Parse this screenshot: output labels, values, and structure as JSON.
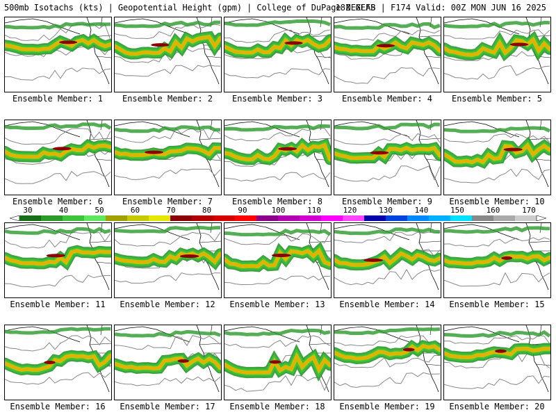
{
  "header": {
    "left": "500mb Isotachs (kts) | Geopotential Height (gpm) | College of DuPage NEXLAB",
    "right": "18Z GEFS | F174 Valid: 00Z MON JUN 16 2025"
  },
  "panels": [
    {
      "label": "Ensemble Member: 1"
    },
    {
      "label": "Ensemble Member: 2"
    },
    {
      "label": "Ensemble Member: 3"
    },
    {
      "label": "Ensemble Member: 4"
    },
    {
      "label": "Ensemble Member: 5"
    },
    {
      "label": "Ensemble Member: 6"
    },
    {
      "label": "Ensemble Member: 7"
    },
    {
      "label": "Ensemble Member: 8"
    },
    {
      "label": "Ensemble Member: 9"
    },
    {
      "label": "Ensemble Member: 10"
    },
    {
      "label": "Ensemble Member: 11"
    },
    {
      "label": "Ensemble Member: 12"
    },
    {
      "label": "Ensemble Member: 13"
    },
    {
      "label": "Ensemble Member: 14"
    },
    {
      "label": "Ensemble Member: 15"
    },
    {
      "label": "Ensemble Member: 16"
    },
    {
      "label": "Ensemble Member: 17"
    },
    {
      "label": "Ensemble Member: 18"
    },
    {
      "label": "Ensemble Member: 19"
    },
    {
      "label": "Ensemble Member: 20"
    }
  ],
  "scale": {
    "labels": [
      "30",
      "40",
      "50",
      "60",
      "70",
      "80",
      "90",
      "100",
      "110",
      "120",
      "130",
      "140",
      "150",
      "160",
      "170"
    ],
    "colors": [
      "#1a6e1a",
      "#2a9a2a",
      "#3cc43c",
      "#5ee65e",
      "#a0a000",
      "#c8c800",
      "#e6e600",
      "#8b0000",
      "#b00000",
      "#d40000",
      "#ff0000",
      "#8b008b",
      "#b000b0",
      "#d000d0",
      "#ff00ff",
      "#ff44ff",
      "#0000aa",
      "#0044dd",
      "#0088ff",
      "#00b0ff",
      "#00e0ff",
      "#888888",
      "#aaaaaa",
      "#cccccc"
    ]
  }
}
